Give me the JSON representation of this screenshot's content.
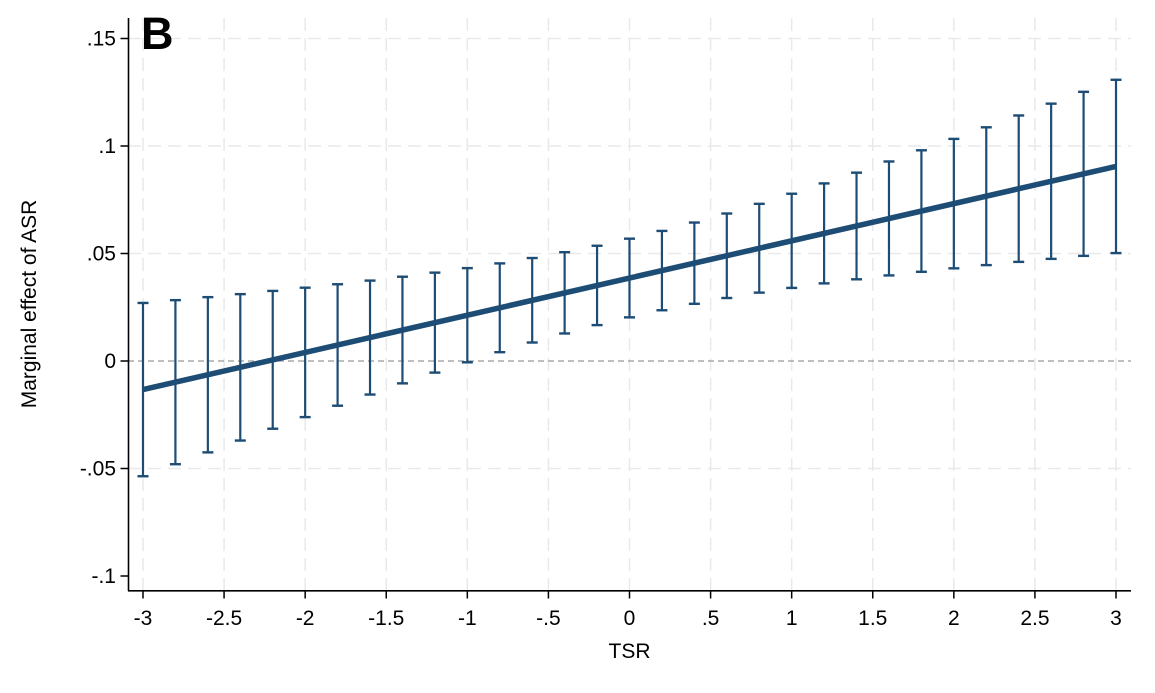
{
  "figure": {
    "panel_label": "B",
    "xlabel": "TSR",
    "ylabel": "Marginal effect of ASR"
  },
  "chart_data": {
    "type": "line",
    "subtype": "marginal-effect-line-with-ci-errorbars",
    "title": "",
    "panel_label": "B",
    "xlabel": "TSR",
    "ylabel": "Marginal effect of ASR",
    "xlim": [
      -3.1,
      3.1
    ],
    "ylim": [
      -0.107,
      0.16
    ],
    "grid": "dashed-both-axes",
    "legend": "none",
    "zero_reference_line": 0,
    "x_ticks": [
      {
        "v": -3,
        "label": "-3"
      },
      {
        "v": -2.5,
        "label": "-2.5"
      },
      {
        "v": -2,
        "label": "-2"
      },
      {
        "v": -1.5,
        "label": "-1.5"
      },
      {
        "v": -1,
        "label": "-1"
      },
      {
        "v": -0.5,
        "label": "-.5"
      },
      {
        "v": 0,
        "label": "0"
      },
      {
        "v": 0.5,
        "label": ".5"
      },
      {
        "v": 1,
        "label": "1"
      },
      {
        "v": 1.5,
        "label": "1.5"
      },
      {
        "v": 2,
        "label": "2"
      },
      {
        "v": 2.5,
        "label": "2.5"
      },
      {
        "v": 3,
        "label": "3"
      }
    ],
    "y_ticks": [
      {
        "v": 0.15,
        "label": ".15"
      },
      {
        "v": 0.1,
        "label": ".1"
      },
      {
        "v": 0.05,
        "label": ".05"
      },
      {
        "v": 0,
        "label": "0"
      },
      {
        "v": -0.05,
        "label": "-.05"
      },
      {
        "v": -0.1,
        "label": "-.1"
      }
    ],
    "h_gridlines_at": [
      0.15,
      0.1,
      0.05,
      -0.05
    ],
    "line": {
      "name": "marginal-effect-of-ASR",
      "x": [
        -3,
        3
      ],
      "y": [
        -0.0133,
        0.0905
      ]
    },
    "error_bars": [
      {
        "x": -3.0,
        "low": -0.0536,
        "high": 0.027
      },
      {
        "x": -2.8,
        "low": -0.048,
        "high": 0.0283
      },
      {
        "x": -2.6,
        "low": -0.0425,
        "high": 0.0297
      },
      {
        "x": -2.4,
        "low": -0.037,
        "high": 0.0311
      },
      {
        "x": -2.2,
        "low": -0.0315,
        "high": 0.0326
      },
      {
        "x": -2.0,
        "low": -0.0261,
        "high": 0.0341
      },
      {
        "x": -1.8,
        "low": -0.0208,
        "high": 0.0357
      },
      {
        "x": -1.6,
        "low": -0.0156,
        "high": 0.0374
      },
      {
        "x": -1.4,
        "low": -0.0104,
        "high": 0.0392
      },
      {
        "x": -1.2,
        "low": -0.0054,
        "high": 0.0411
      },
      {
        "x": -1.0,
        "low": -0.0006,
        "high": 0.0432
      },
      {
        "x": -0.8,
        "low": 0.0041,
        "high": 0.0454
      },
      {
        "x": -0.6,
        "low": 0.0086,
        "high": 0.0479
      },
      {
        "x": -0.4,
        "low": 0.0128,
        "high": 0.0506
      },
      {
        "x": -0.2,
        "low": 0.0167,
        "high": 0.0536
      },
      {
        "x": 0.0,
        "low": 0.0203,
        "high": 0.0569
      },
      {
        "x": 0.2,
        "low": 0.0236,
        "high": 0.0605
      },
      {
        "x": 0.4,
        "low": 0.0266,
        "high": 0.0644
      },
      {
        "x": 0.6,
        "low": 0.0293,
        "high": 0.0686
      },
      {
        "x": 0.8,
        "low": 0.0318,
        "high": 0.0731
      },
      {
        "x": 1.0,
        "low": 0.034,
        "high": 0.0778
      },
      {
        "x": 1.2,
        "low": 0.0361,
        "high": 0.0826
      },
      {
        "x": 1.4,
        "low": 0.038,
        "high": 0.0876
      },
      {
        "x": 1.6,
        "low": 0.0398,
        "high": 0.0928
      },
      {
        "x": 1.8,
        "low": 0.0415,
        "high": 0.098
      },
      {
        "x": 2.0,
        "low": 0.0431,
        "high": 0.1033
      },
      {
        "x": 2.2,
        "low": 0.0446,
        "high": 0.1087
      },
      {
        "x": 2.4,
        "low": 0.0461,
        "high": 0.1142
      },
      {
        "x": 2.6,
        "low": 0.0475,
        "high": 0.1197
      },
      {
        "x": 2.8,
        "low": 0.0489,
        "high": 0.1252
      },
      {
        "x": 3.0,
        "low": 0.0502,
        "high": 0.1308
      }
    ],
    "colors": {
      "series": "#1d4c75",
      "grid": "#e9e9e9",
      "zero_line": "#999999",
      "axis": "#000000",
      "text": "#000000",
      "background": "#ffffff"
    }
  }
}
